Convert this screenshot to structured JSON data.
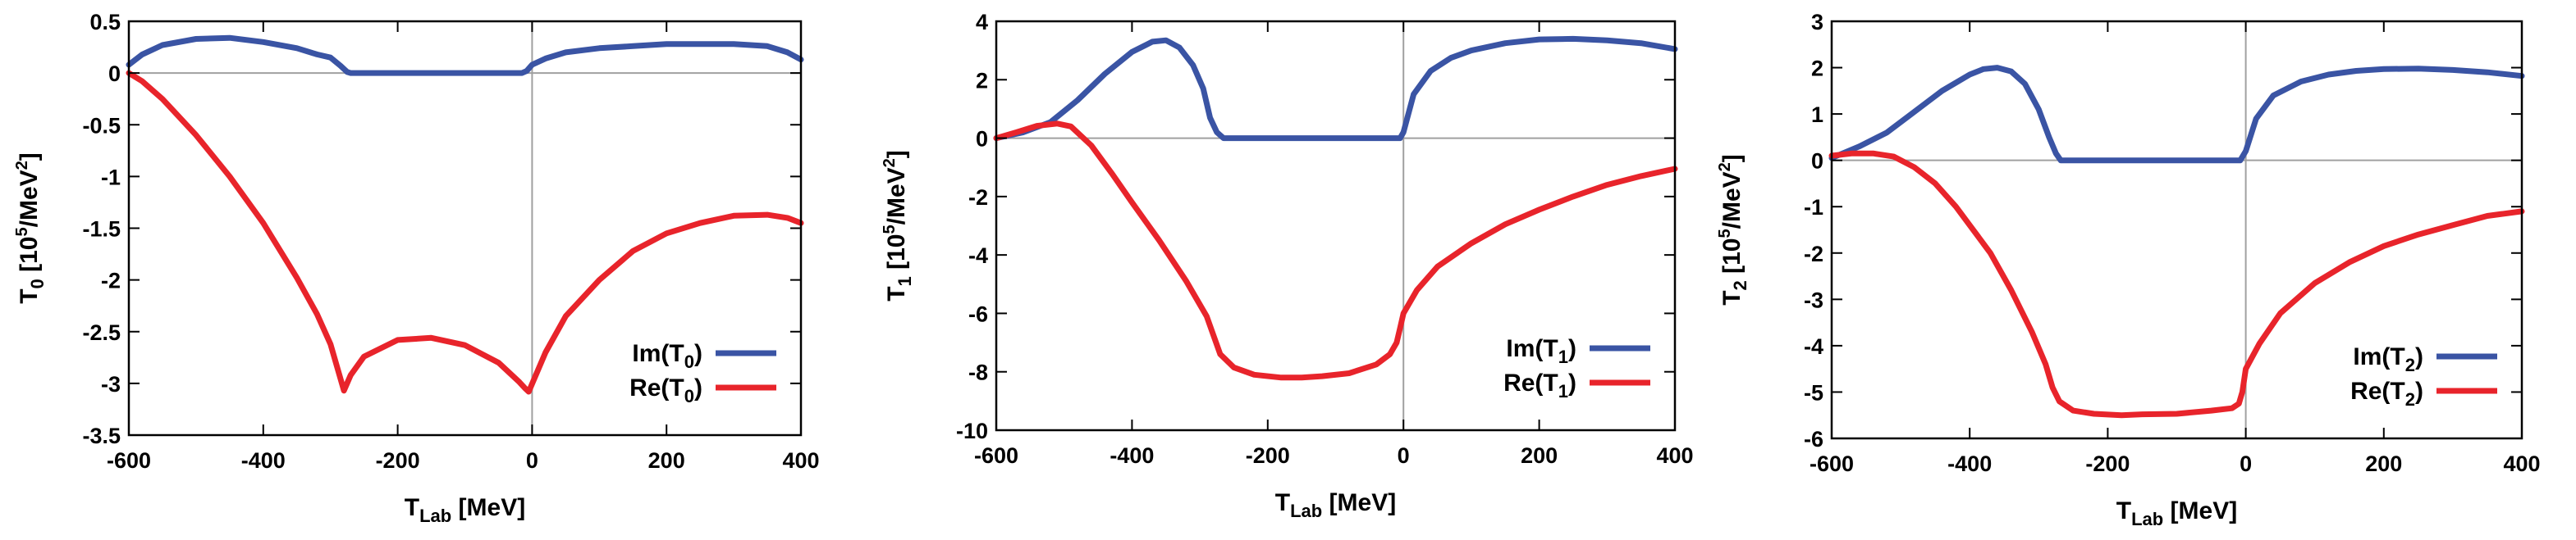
{
  "colors": {
    "im": "#3a54a4",
    "re": "#e8242b",
    "zero_line": "#a0a0a0",
    "axes": "#000000"
  },
  "chart_data": [
    {
      "type": "line",
      "xlabel": {
        "main": "T",
        "sub": "Lab",
        "rest": " [MeV]"
      },
      "ylabel": {
        "main": "T",
        "sub": "0",
        "rest": " [10",
        "sup": "5",
        "rest2": "/MeV",
        "sup2": "2",
        "close": "]"
      },
      "xlim": [
        -600,
        400
      ],
      "ylim": [
        -3.5,
        0.5
      ],
      "xticks": [
        -600,
        -400,
        -200,
        0,
        200,
        400
      ],
      "xtick_labels": [
        "-600",
        "-400",
        "-200",
        "0",
        "200",
        "400"
      ],
      "yticks": [
        0.5,
        0,
        -0.5,
        -1,
        -1.5,
        -2,
        -2.5,
        -3,
        -3.5
      ],
      "ytick_labels": [
        "0.5",
        "0",
        "-0.5",
        "-1",
        "-1.5",
        "-2",
        "-2.5",
        "-3",
        "-3.5"
      ],
      "legend_position": "bottom-right",
      "series": [
        {
          "name": "Im(T0)",
          "label_main": "Im(T",
          "label_sub": "0",
          "label_close": ")",
          "color_key": "im",
          "x": [
            -600,
            -580,
            -550,
            -500,
            -450,
            -400,
            -350,
            -320,
            -300,
            -285,
            -275,
            -270,
            -200,
            -100,
            -15,
            -8,
            0,
            20,
            50,
            100,
            150,
            200,
            250,
            300,
            350,
            380,
            400
          ],
          "y": [
            0.08,
            0.18,
            0.27,
            0.33,
            0.34,
            0.3,
            0.24,
            0.18,
            0.15,
            0.07,
            0.01,
            0,
            0,
            0,
            0,
            0.02,
            0.08,
            0.14,
            0.2,
            0.24,
            0.26,
            0.28,
            0.28,
            0.28,
            0.26,
            0.2,
            0.13
          ]
        },
        {
          "name": "Re(T0)",
          "label_main": "Re(T",
          "label_sub": "0",
          "label_close": ")",
          "color_key": "re",
          "x": [
            -600,
            -580,
            -550,
            -500,
            -450,
            -400,
            -350,
            -320,
            -300,
            -280,
            -270,
            -250,
            -200,
            -150,
            -100,
            -50,
            -20,
            -10,
            -5,
            20,
            50,
            100,
            150,
            200,
            250,
            300,
            350,
            380,
            400
          ],
          "y": [
            0,
            -0.08,
            -0.25,
            -0.6,
            -1.0,
            -1.45,
            -1.98,
            -2.33,
            -2.62,
            -3.07,
            -2.92,
            -2.74,
            -2.58,
            -2.56,
            -2.63,
            -2.8,
            -2.98,
            -3.05,
            -3.08,
            -2.7,
            -2.35,
            -2.0,
            -1.72,
            -1.55,
            -1.45,
            -1.38,
            -1.37,
            -1.4,
            -1.45
          ]
        }
      ]
    },
    {
      "type": "line",
      "xlabel": {
        "main": "T",
        "sub": "Lab",
        "rest": " [MeV]"
      },
      "ylabel": {
        "main": "T",
        "sub": "1",
        "rest": " [10",
        "sup": "5",
        "rest2": "/MeV",
        "sup2": "2",
        "close": "]"
      },
      "xlim": [
        -600,
        400
      ],
      "ylim": [
        -10,
        4
      ],
      "xticks": [
        -600,
        -400,
        -200,
        0,
        200,
        400
      ],
      "xtick_labels": [
        "-600",
        "-400",
        "-200",
        "0",
        "200",
        "400"
      ],
      "yticks": [
        4,
        2,
        0,
        -2,
        -4,
        -6,
        -8,
        -10
      ],
      "ytick_labels": [
        "4",
        "2",
        "0",
        "-2",
        "-4",
        "-6",
        "-8",
        "-10"
      ],
      "legend_position": "bottom-right",
      "series": [
        {
          "name": "Im(T1)",
          "label_main": "Im(T",
          "label_sub": "1",
          "label_close": ")",
          "color_key": "im",
          "x": [
            -600,
            -560,
            -520,
            -480,
            -440,
            -400,
            -370,
            -350,
            -330,
            -310,
            -295,
            -285,
            -275,
            -265,
            -200,
            -100,
            -5,
            0,
            15,
            40,
            70,
            100,
            150,
            200,
            250,
            300,
            350,
            400
          ],
          "y": [
            0,
            0.2,
            0.55,
            1.3,
            2.2,
            2.95,
            3.3,
            3.35,
            3.1,
            2.5,
            1.7,
            0.7,
            0.2,
            0,
            0,
            0,
            0,
            0.2,
            1.5,
            2.3,
            2.75,
            3.0,
            3.25,
            3.38,
            3.4,
            3.35,
            3.25,
            3.05
          ]
        },
        {
          "name": "Re(T1)",
          "label_main": "Re(T",
          "label_sub": "1",
          "label_close": ")",
          "color_key": "re",
          "x": [
            -600,
            -570,
            -540,
            -510,
            -490,
            -460,
            -430,
            -400,
            -360,
            -320,
            -290,
            -270,
            -250,
            -220,
            -180,
            -150,
            -120,
            -80,
            -40,
            -20,
            -10,
            -5,
            0,
            20,
            50,
            100,
            150,
            200,
            250,
            300,
            350,
            400
          ],
          "y": [
            0,
            0.2,
            0.42,
            0.5,
            0.4,
            -0.25,
            -1.2,
            -2.2,
            -3.5,
            -4.9,
            -6.1,
            -7.4,
            -7.85,
            -8.1,
            -8.2,
            -8.2,
            -8.15,
            -8.05,
            -7.75,
            -7.4,
            -7.0,
            -6.5,
            -6.0,
            -5.2,
            -4.4,
            -3.6,
            -2.95,
            -2.45,
            -2.0,
            -1.6,
            -1.3,
            -1.05
          ]
        }
      ]
    },
    {
      "type": "line",
      "xlabel": {
        "main": "T",
        "sub": "Lab",
        "rest": " [MeV]"
      },
      "ylabel": {
        "main": "T",
        "sub": "2",
        "rest": " [10",
        "sup": "5",
        "rest2": "/MeV",
        "sup2": "2",
        "close": "]"
      },
      "xlim": [
        -600,
        400
      ],
      "ylim": [
        -6,
        3
      ],
      "xticks": [
        -600,
        -400,
        -200,
        0,
        200,
        400
      ],
      "xtick_labels": [
        "-600",
        "-400",
        "-200",
        "0",
        "200",
        "400"
      ],
      "yticks": [
        3,
        2,
        1,
        0,
        -1,
        -2,
        -3,
        -4,
        -5,
        -6
      ],
      "ytick_labels": [
        "3",
        "2",
        "1",
        "0",
        "-1",
        "-2",
        "-3",
        "-4",
        "-5",
        "-6"
      ],
      "legend_position": "bottom-right",
      "series": [
        {
          "name": "Im(T2)",
          "label_main": "Im(T",
          "label_sub": "2",
          "label_close": ")",
          "color_key": "im",
          "x": [
            -600,
            -560,
            -520,
            -480,
            -440,
            -400,
            -380,
            -360,
            -340,
            -320,
            -300,
            -285,
            -275,
            -268,
            -200,
            -100,
            -8,
            0,
            15,
            40,
            80,
            120,
            160,
            200,
            250,
            300,
            350,
            400
          ],
          "y": [
            0.05,
            0.3,
            0.6,
            1.05,
            1.5,
            1.85,
            1.97,
            2.0,
            1.92,
            1.65,
            1.1,
            0.5,
            0.15,
            0,
            0,
            0,
            0,
            0.2,
            0.9,
            1.4,
            1.7,
            1.85,
            1.93,
            1.97,
            1.98,
            1.95,
            1.9,
            1.82
          ]
        },
        {
          "name": "Re(T2)",
          "label_main": "Re(T",
          "label_sub": "2",
          "label_close": ")",
          "color_key": "re",
          "x": [
            -600,
            -570,
            -540,
            -510,
            -480,
            -450,
            -420,
            -400,
            -370,
            -340,
            -310,
            -290,
            -280,
            -270,
            -250,
            -220,
            -180,
            -150,
            -100,
            -50,
            -20,
            -10,
            -5,
            0,
            20,
            50,
            100,
            150,
            200,
            250,
            300,
            350,
            400
          ],
          "y": [
            0.1,
            0.15,
            0.15,
            0.08,
            -0.15,
            -0.5,
            -1.0,
            -1.4,
            -2.0,
            -2.8,
            -3.7,
            -4.4,
            -4.9,
            -5.2,
            -5.4,
            -5.47,
            -5.5,
            -5.48,
            -5.47,
            -5.4,
            -5.35,
            -5.25,
            -5.0,
            -4.5,
            -3.95,
            -3.3,
            -2.65,
            -2.2,
            -1.85,
            -1.6,
            -1.4,
            -1.2,
            -1.1
          ]
        }
      ]
    }
  ]
}
